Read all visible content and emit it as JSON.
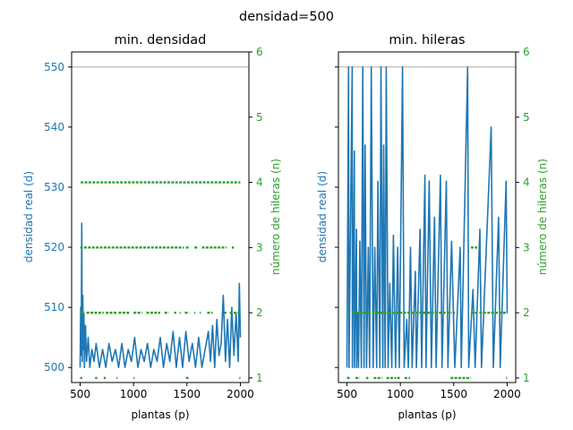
{
  "suptitle": "densidad=500",
  "colors": {
    "density": "#1f77b4",
    "rows": "#2ca02c",
    "reference": "#bbbbbb",
    "axis": "#000000"
  },
  "chart_data": [
    {
      "type": "line",
      "title": "min. densidad",
      "xlabel": "plantas (p)",
      "ylabel": "densidad real (d)",
      "y2label": "número de hileras (n)",
      "xlim": [
        420,
        2080
      ],
      "ylim": [
        497.5,
        552.5
      ],
      "y2lim": [
        0.93,
        6.0
      ],
      "xticks": [
        500,
        1000,
        1500,
        2000
      ],
      "yticks": [
        500,
        510,
        520,
        530,
        540,
        550
      ],
      "y2ticks": [
        1,
        2,
        3,
        4,
        5,
        6
      ],
      "reference_line": 550,
      "series": [
        {
          "axis": "left",
          "kind": "line",
          "x": [
            500,
            505,
            510,
            515,
            520,
            525,
            530,
            535,
            540,
            550,
            560,
            575,
            590,
            610,
            630,
            650,
            680,
            710,
            740,
            770,
            800,
            830,
            860,
            890,
            920,
            950,
            980,
            1010,
            1040,
            1070,
            1100,
            1130,
            1160,
            1190,
            1220,
            1250,
            1280,
            1310,
            1340,
            1370,
            1400,
            1430,
            1460,
            1490,
            1520,
            1550,
            1580,
            1610,
            1640,
            1670,
            1700,
            1720,
            1740,
            1760,
            1780,
            1800,
            1820,
            1840,
            1860,
            1880,
            1900,
            1920,
            1940,
            1960,
            1980,
            1990,
            2000
          ],
          "y": [
            500,
            510,
            502,
            524,
            501,
            512,
            503,
            509,
            500,
            507,
            501,
            505,
            500,
            503,
            501,
            504,
            500,
            503,
            500,
            504,
            501,
            503,
            500,
            504,
            500,
            503,
            501,
            505,
            500,
            503,
            501,
            504,
            500,
            503,
            501,
            505,
            500,
            504,
            501,
            506,
            500,
            505,
            500,
            506,
            501,
            504,
            500,
            505,
            500,
            503,
            506,
            501,
            507,
            500,
            508,
            502,
            504,
            512,
            501,
            508,
            500,
            510,
            502,
            509,
            501,
            514,
            505
          ]
        },
        {
          "axis": "right",
          "kind": "dash",
          "value": 4,
          "segments": [
            [
              505,
              2000
            ]
          ]
        },
        {
          "axis": "right",
          "kind": "dash",
          "value": 3,
          "segments": [
            [
              500,
              1470
            ],
            [
              1490,
              1520
            ],
            [
              1570,
              1600
            ],
            [
              1640,
              1870
            ],
            [
              1920,
              1940
            ]
          ]
        },
        {
          "axis": "right",
          "kind": "dash",
          "value": 2,
          "segments": [
            [
              500,
              540
            ],
            [
              560,
              720
            ],
            [
              740,
              840
            ],
            [
              860,
              960
            ],
            [
              1000,
              1080
            ],
            [
              1120,
              1250
            ],
            [
              1290,
              1330
            ],
            [
              1380,
              1400
            ],
            [
              1430,
              1440
            ],
            [
              1480,
              1520
            ],
            [
              1570,
              1580
            ],
            [
              1620,
              1630
            ],
            [
              1690,
              1740
            ],
            [
              1850,
              1870
            ],
            [
              1900,
              2000
            ]
          ]
        },
        {
          "axis": "right",
          "kind": "dash",
          "value": 1,
          "segments": [
            [
              500,
              520
            ],
            [
              640,
              660
            ],
            [
              720,
              740
            ],
            [
              840,
              850
            ],
            [
              1000,
              1010
            ],
            [
              1490,
              1520
            ],
            [
              1990,
              2000
            ]
          ]
        }
      ]
    },
    {
      "type": "line",
      "title": "min. hileras",
      "xlabel": "plantas (p)",
      "ylabel": "densidad real (d)",
      "y2label": "número de hileras (n)",
      "xlim": [
        420,
        2080
      ],
      "ylim": [
        497.5,
        552.5
      ],
      "y2lim": [
        0.93,
        6.0
      ],
      "xticks": [
        500,
        1000,
        1500,
        2000
      ],
      "yticks": [
        500,
        510,
        520,
        530,
        540,
        550
      ],
      "y2ticks": [
        1,
        2,
        3,
        4,
        5,
        6
      ],
      "y_ticklabels_visible": false,
      "reference_line": 550,
      "series": [
        {
          "axis": "left",
          "kind": "line",
          "x": [
            500,
            500,
            515,
            519,
            549,
            551,
            569,
            570,
            589,
            590,
            600,
            608,
            620,
            635,
            648,
            660,
            670,
            683,
            700,
            712,
            728,
            745,
            760,
            778,
            790,
            808,
            818,
            836,
            843,
            858,
            868,
            885,
            900,
            920,
            935,
            955,
            975,
            990,
            1020,
            1035,
            1060,
            1075,
            1095,
            1110,
            1140,
            1150,
            1185,
            1200,
            1230,
            1240,
            1270,
            1290,
            1320,
            1335,
            1375,
            1390,
            1430,
            1445,
            1480,
            1510,
            1560,
            1570,
            1630,
            1640,
            1680,
            1700,
            1745,
            1760,
            1850,
            1870,
            1920,
            1935,
            1990,
            2000
          ],
          "y": [
            500,
            500,
            550,
            500,
            550,
            500,
            536,
            500,
            523,
            500,
            509,
            500,
            521,
            500,
            550,
            500,
            537,
            500,
            520,
            500,
            550,
            500,
            520,
            500,
            531,
            500,
            550,
            500,
            537,
            500,
            550,
            500,
            514,
            500,
            522,
            500,
            520,
            500,
            550,
            500,
            508,
            500,
            520,
            500,
            516,
            500,
            523,
            500,
            532,
            500,
            531,
            500,
            525,
            500,
            532,
            500,
            531,
            500,
            521,
            500,
            520,
            500,
            550,
            500,
            513,
            500,
            523,
            500,
            540,
            500,
            525,
            500,
            531,
            509
          ]
        },
        {
          "axis": "right",
          "kind": "dash",
          "value": 3,
          "segments": [
            [
              1660,
              1720
            ]
          ]
        },
        {
          "axis": "right",
          "kind": "dash",
          "value": 2,
          "segments": [
            [
              550,
              1480
            ],
            [
              1500,
              1510
            ],
            [
              1660,
              1720
            ],
            [
              1740,
              2000
            ]
          ]
        },
        {
          "axis": "right",
          "kind": "dash",
          "value": 1,
          "segments": [
            [
              500,
              530
            ],
            [
              580,
              620
            ],
            [
              680,
              700
            ],
            [
              750,
              830
            ],
            [
              870,
              960
            ],
            [
              970,
              1000
            ],
            [
              1040,
              1090
            ],
            [
              1470,
              1660
            ],
            [
              1990,
              2000
            ]
          ]
        }
      ]
    }
  ]
}
